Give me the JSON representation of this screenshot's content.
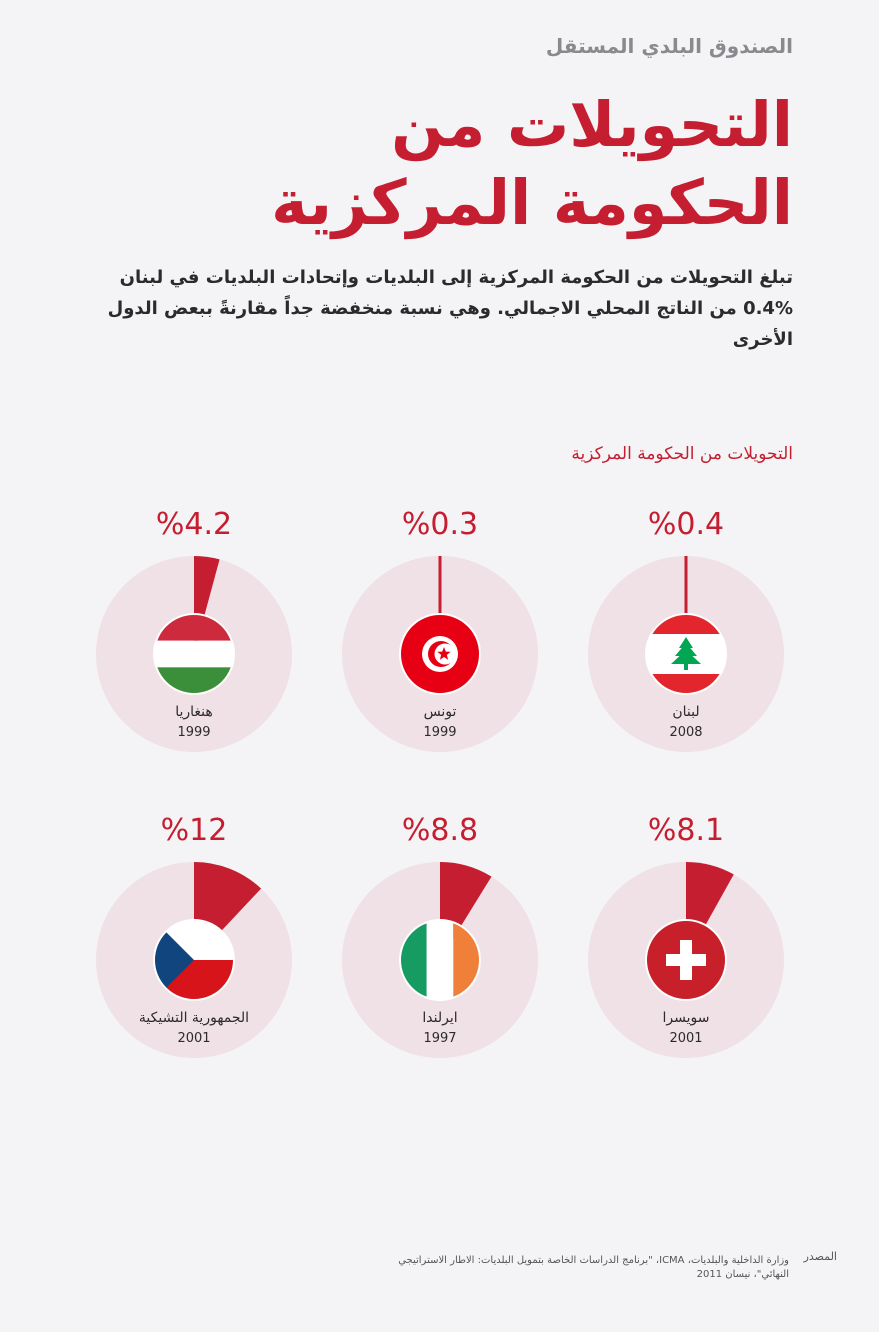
{
  "header": {
    "kicker": "الصندوق البلدي المستقل",
    "title_line1": "التحويلات من",
    "title_line2": "الحكومة المركزية",
    "intro": "تبلغ التحويلات من الحكومة المركزية إلى البلديات وإتحادات البلديات في لبنان %0.4 من الناتج المحلي الاجمالي. وهي نسبة منخفضة جداً مقارنةً ببعض الدول الأخرى"
  },
  "chart_data": {
    "type": "pie",
    "title": "التحويلات من الحكومة المركزية",
    "value_unit": "%",
    "items": [
      {
        "country": "لبنان",
        "year": "2008",
        "value": 0.4,
        "label": "%0.4",
        "flag": "lebanon-flag"
      },
      {
        "country": "تونس",
        "year": "1999",
        "value": 0.3,
        "label": "%0.3",
        "flag": "tunisia-flag"
      },
      {
        "country": "هنغاريا",
        "year": "1999",
        "value": 4.2,
        "label": "%4.2",
        "flag": "hungary-flag"
      },
      {
        "country": "سويسرا",
        "year": "2001",
        "value": 8.1,
        "label": "%8.1",
        "flag": "switzerland-flag"
      },
      {
        "country": "ايرلندا",
        "year": "1997",
        "value": 8.8,
        "label": "%8.8",
        "flag": "ireland-flag"
      },
      {
        "country": "الجمهورية التشيكية",
        "year": "2001",
        "value": 12,
        "label": "%12",
        "flag": "czech-flag"
      }
    ],
    "colors": {
      "background": "#efe1e6",
      "slice": "#c41e30",
      "value_text": "#c41e30"
    }
  },
  "source": {
    "label": "المصدر",
    "text": "وزارة الداخلية والبلديات، ICMA، \"برنامج الدراسات الخاصة بتمويل البلديات: الاطار الاستراتيجي النهائي\"، نيسان 2011"
  }
}
